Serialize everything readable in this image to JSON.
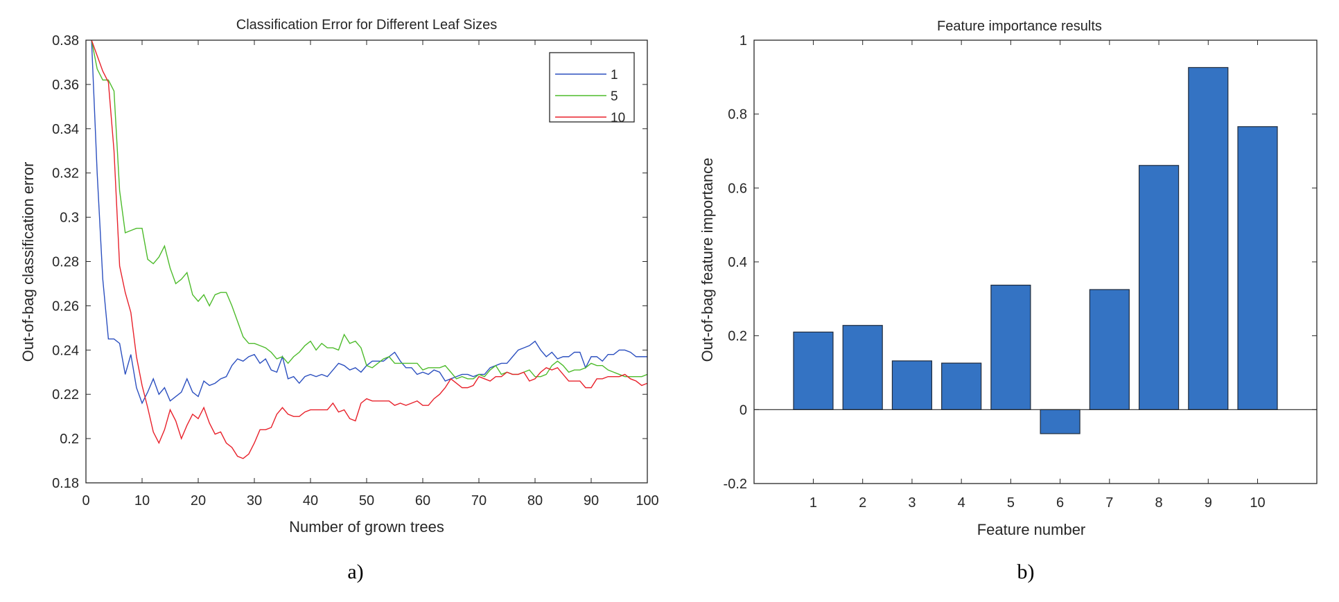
{
  "chart_data": [
    {
      "type": "line",
      "title": "Classification Error for Different Leaf Sizes",
      "xlabel": "Number of grown trees",
      "ylabel": "Out-of-bag classification error",
      "caption": "a)",
      "xlim": [
        0,
        100
      ],
      "ylim": [
        0.18,
        0.38
      ],
      "xticks": [
        "0",
        "10",
        "20",
        "30",
        "40",
        "50",
        "60",
        "70",
        "80",
        "90",
        "100"
      ],
      "yticks": [
        "0.18",
        "0.2",
        "0.22",
        "0.24",
        "0.26",
        "0.28",
        "0.3",
        "0.32",
        "0.34",
        "0.36",
        "0.38"
      ],
      "legend_position": "top-right",
      "series": [
        {
          "name": "1",
          "color": "#2b4fbf",
          "values": [
            0.38,
            0.32,
            0.272,
            0.245,
            0.245,
            0.243,
            0.229,
            0.238,
            0.223,
            0.216,
            0.221,
            0.227,
            0.22,
            0.223,
            0.217,
            0.219,
            0.221,
            0.227,
            0.221,
            0.219,
            0.226,
            0.224,
            0.225,
            0.227,
            0.228,
            0.233,
            0.236,
            0.235,
            0.237,
            0.238,
            0.234,
            0.236,
            0.231,
            0.23,
            0.237,
            0.227,
            0.228,
            0.225,
            0.228,
            0.229,
            0.228,
            0.229,
            0.228,
            0.231,
            0.234,
            0.233,
            0.231,
            0.232,
            0.23,
            0.233,
            0.235,
            0.235,
            0.235,
            0.237,
            0.239,
            0.235,
            0.232,
            0.232,
            0.229,
            0.23,
            0.229,
            0.231,
            0.23,
            0.226,
            0.227,
            0.228,
            0.229,
            0.229,
            0.228,
            0.229,
            0.229,
            0.232,
            0.233,
            0.234,
            0.234,
            0.237,
            0.24,
            0.241,
            0.242,
            0.244,
            0.24,
            0.237,
            0.239,
            0.236,
            0.237,
            0.237,
            0.239,
            0.239,
            0.232,
            0.237,
            0.237,
            0.235,
            0.238,
            0.238,
            0.24,
            0.24,
            0.239,
            0.237,
            0.237,
            0.237
          ]
        },
        {
          "name": "5",
          "color": "#4dbb2b",
          "values": [
            0.38,
            0.367,
            0.362,
            0.362,
            0.357,
            0.312,
            0.293,
            0.294,
            0.295,
            0.295,
            0.281,
            0.279,
            0.282,
            0.287,
            0.277,
            0.27,
            0.272,
            0.275,
            0.265,
            0.262,
            0.265,
            0.26,
            0.265,
            0.266,
            0.266,
            0.26,
            0.253,
            0.246,
            0.243,
            0.243,
            0.242,
            0.241,
            0.239,
            0.236,
            0.237,
            0.234,
            0.237,
            0.239,
            0.242,
            0.244,
            0.24,
            0.243,
            0.241,
            0.241,
            0.24,
            0.247,
            0.243,
            0.244,
            0.241,
            0.233,
            0.232,
            0.234,
            0.236,
            0.237,
            0.234,
            0.234,
            0.234,
            0.234,
            0.234,
            0.231,
            0.232,
            0.232,
            0.232,
            0.233,
            0.23,
            0.227,
            0.228,
            0.227,
            0.227,
            0.229,
            0.228,
            0.231,
            0.233,
            0.229,
            0.23,
            0.229,
            0.229,
            0.23,
            0.231,
            0.228,
            0.228,
            0.229,
            0.233,
            0.235,
            0.233,
            0.23,
            0.231,
            0.231,
            0.232,
            0.234,
            0.233,
            0.233,
            0.231,
            0.23,
            0.229,
            0.228,
            0.228,
            0.228,
            0.228,
            0.229
          ]
        },
        {
          "name": "10",
          "color": "#e8202a",
          "values": [
            0.38,
            0.373,
            0.366,
            0.361,
            0.33,
            0.278,
            0.266,
            0.257,
            0.237,
            0.224,
            0.214,
            0.203,
            0.198,
            0.204,
            0.213,
            0.208,
            0.2,
            0.206,
            0.211,
            0.209,
            0.214,
            0.207,
            0.202,
            0.203,
            0.198,
            0.196,
            0.192,
            0.191,
            0.193,
            0.198,
            0.204,
            0.204,
            0.205,
            0.211,
            0.214,
            0.211,
            0.21,
            0.21,
            0.212,
            0.213,
            0.213,
            0.213,
            0.213,
            0.216,
            0.212,
            0.213,
            0.209,
            0.208,
            0.216,
            0.218,
            0.217,
            0.217,
            0.217,
            0.217,
            0.215,
            0.216,
            0.215,
            0.216,
            0.217,
            0.215,
            0.215,
            0.218,
            0.22,
            0.223,
            0.227,
            0.225,
            0.223,
            0.223,
            0.224,
            0.228,
            0.227,
            0.226,
            0.228,
            0.228,
            0.23,
            0.229,
            0.229,
            0.23,
            0.226,
            0.227,
            0.23,
            0.232,
            0.231,
            0.232,
            0.229,
            0.226,
            0.226,
            0.226,
            0.223,
            0.223,
            0.227,
            0.227,
            0.228,
            0.228,
            0.228,
            0.229,
            0.227,
            0.226,
            0.224,
            0.225
          ]
        }
      ]
    },
    {
      "type": "bar",
      "title": "Feature importance results",
      "xlabel": "Feature number",
      "ylabel": "Out-of-bag feature importance",
      "caption": "b)",
      "categories": [
        "1",
        "2",
        "3",
        "4",
        "5",
        "6",
        "7",
        "8",
        "9",
        "10"
      ],
      "values": [
        0.21,
        0.228,
        0.132,
        0.126,
        0.337,
        -0.065,
        0.325,
        0.661,
        0.926,
        0.766
      ],
      "ylim": [
        -0.2,
        1
      ],
      "yticks": [
        "-0.2",
        "0",
        "0.2",
        "0.4",
        "0.6",
        "0.8",
        "1"
      ],
      "bar_color": "#3473c3"
    }
  ]
}
